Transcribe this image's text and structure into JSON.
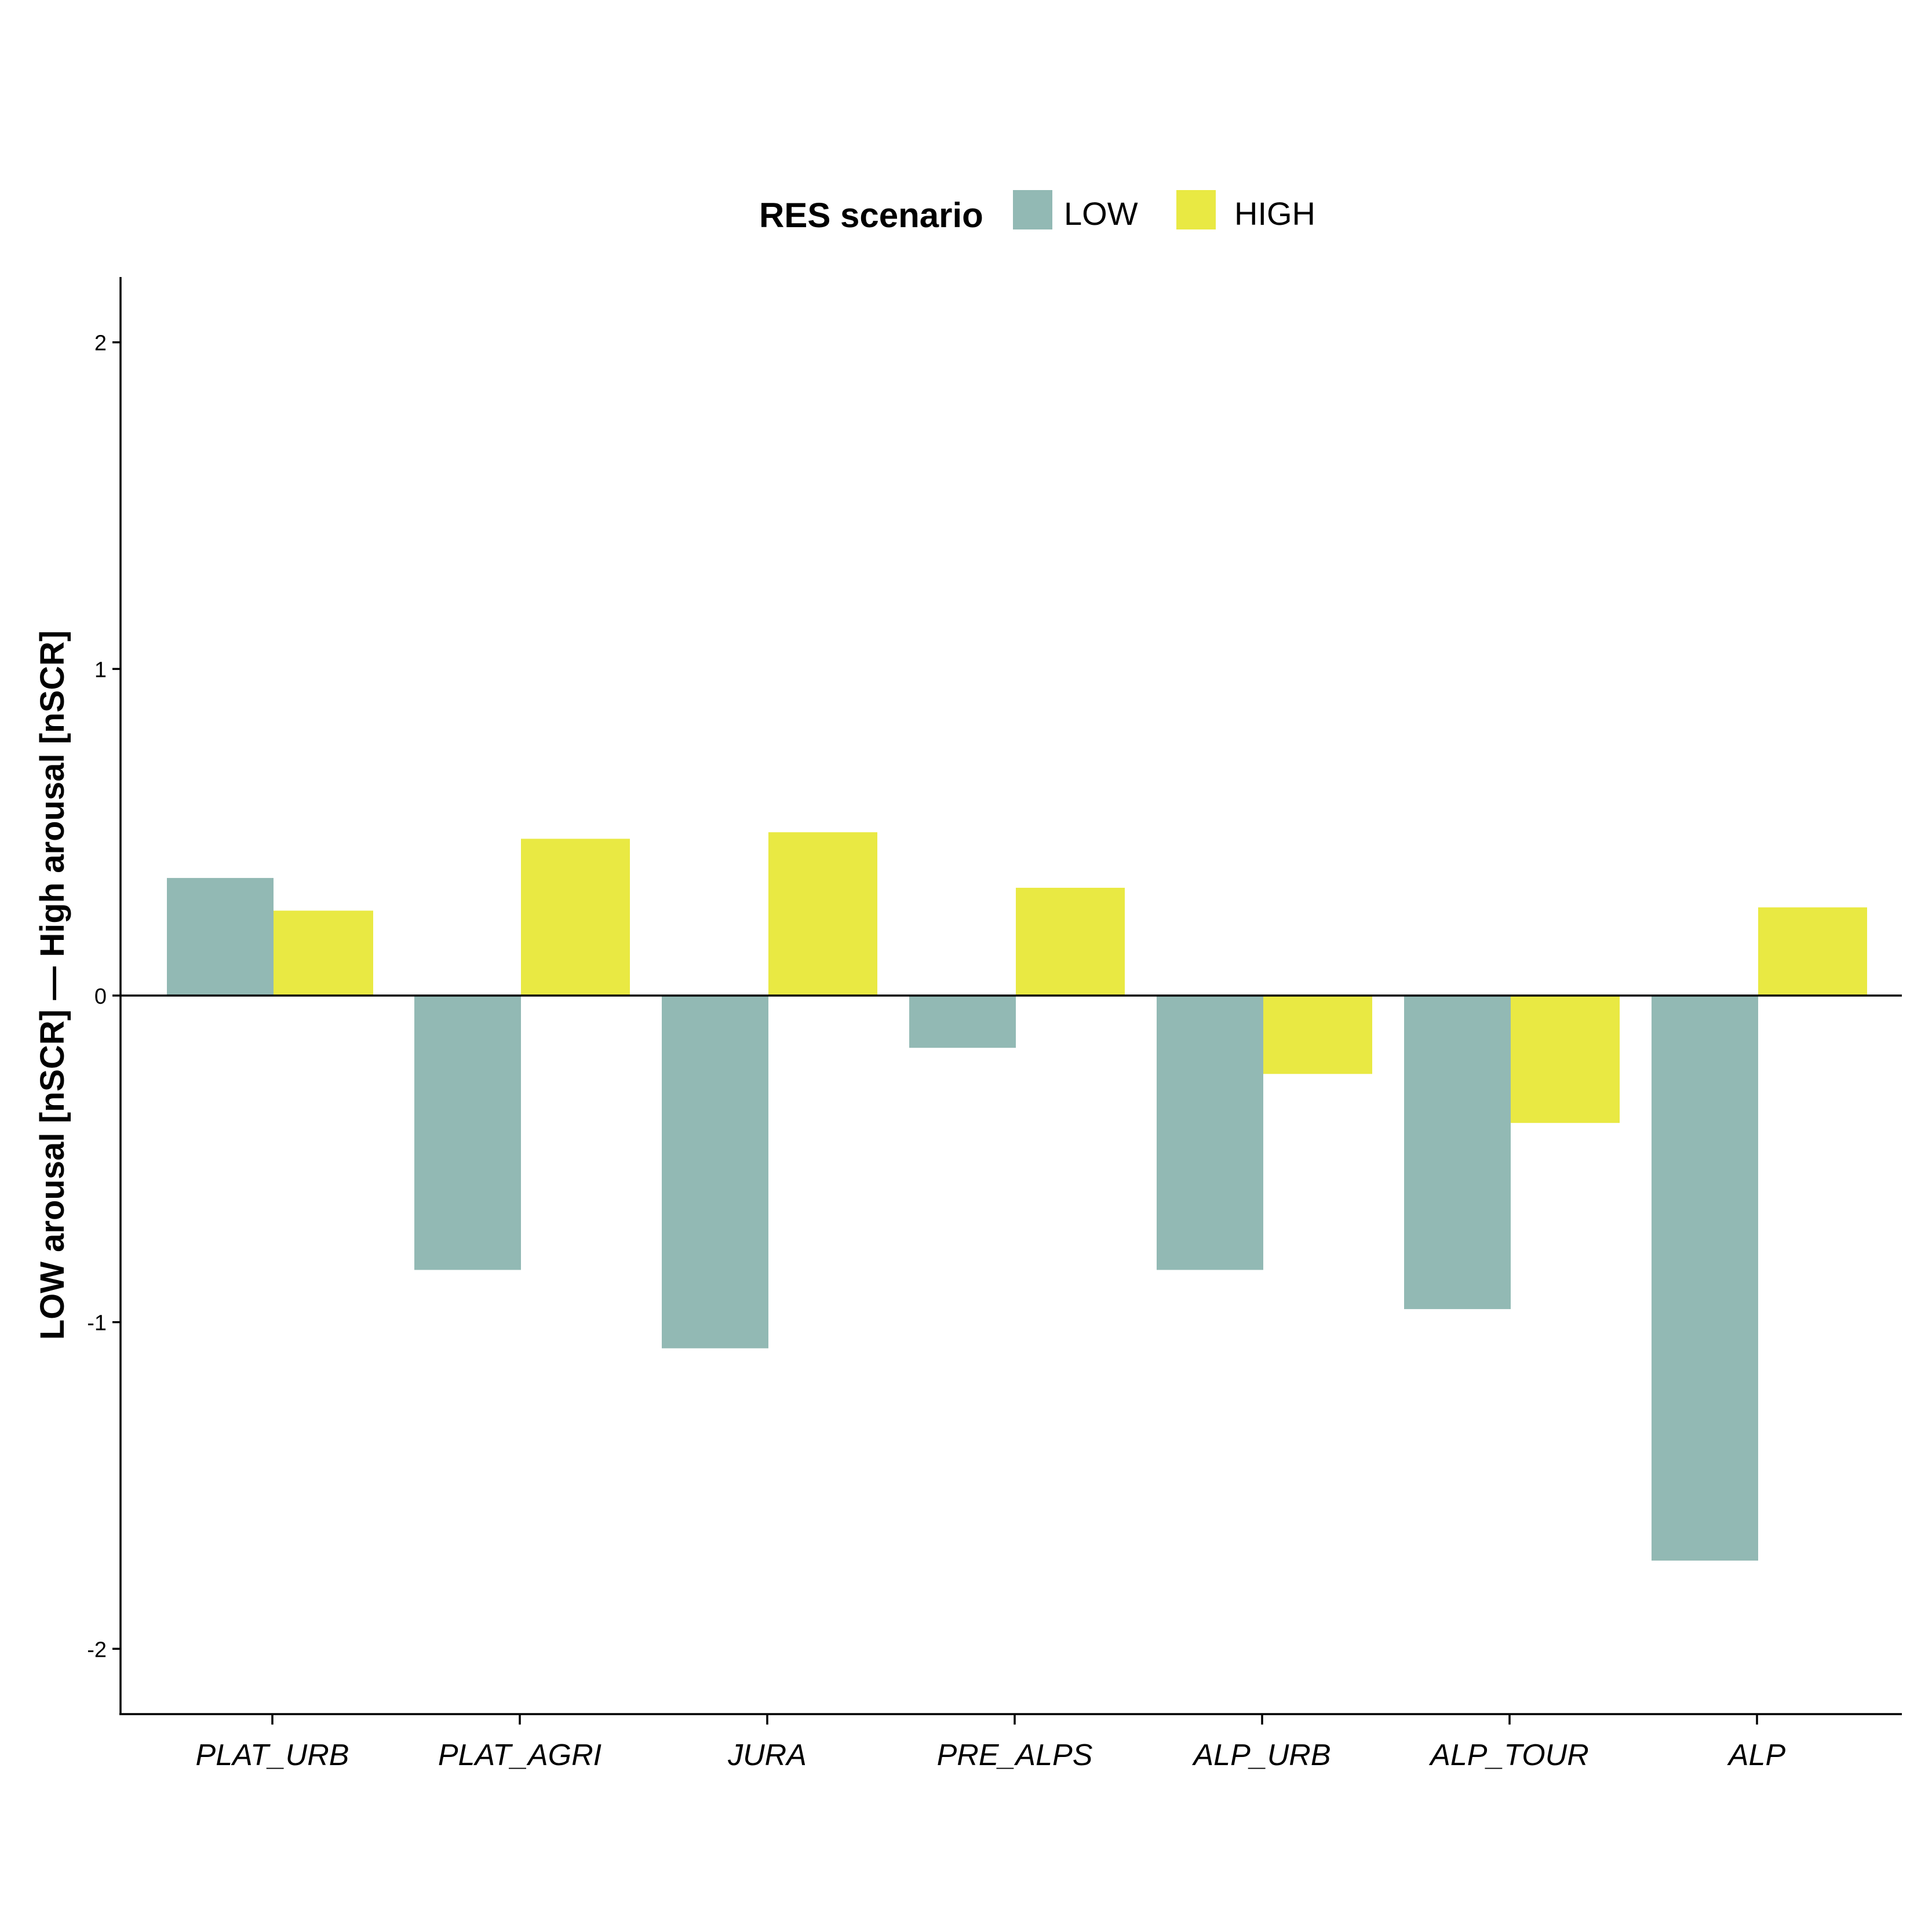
{
  "chart_data": {
    "type": "bar",
    "categories": [
      "PLAT_URB",
      "PLAT_AGRI",
      "JURA",
      "PRE_ALPS",
      "ALP_URB",
      "ALP_TOUR",
      "ALP"
    ],
    "series": [
      {
        "name": "LOW",
        "color": "#92b9b4",
        "values": [
          0.36,
          -0.84,
          -1.08,
          -0.16,
          -0.84,
          -0.96,
          -1.73
        ]
      },
      {
        "name": "HIGH",
        "color": "#e9e943",
        "values": [
          0.26,
          0.48,
          0.5,
          0.33,
          -0.24,
          -0.39,
          0.27
        ]
      }
    ],
    "title": "",
    "xlabel": "",
    "ylabel": "LOW arousal [nSCR]  —  High arousal [nSCR]",
    "ylim": [
      -2.2,
      2.2
    ],
    "yticks": [
      -2,
      -1,
      0,
      1,
      2
    ],
    "grid": false,
    "legend": {
      "title": "RES scenario",
      "position": "top"
    }
  }
}
